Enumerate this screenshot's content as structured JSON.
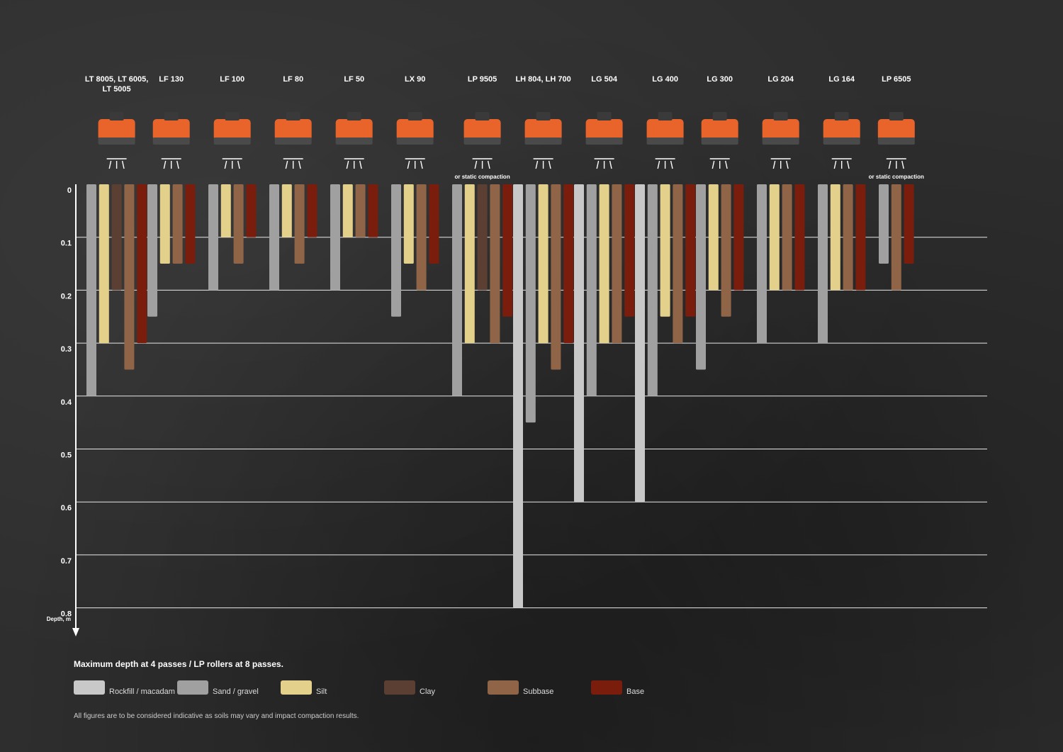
{
  "chart_data": {
    "type": "bar",
    "title": "",
    "ylabel": "Depth, m",
    "ylim": [
      0,
      0.8
    ],
    "yticks": [
      "0",
      "0.1",
      "0.2",
      "0.3",
      "0.4",
      "0.5",
      "0.6",
      "0.7",
      "0.8"
    ],
    "series_order": [
      "Rockfill / macadam",
      "Sand / gravel",
      "Silt",
      "Clay",
      "Subbase",
      "Base"
    ],
    "colors": {
      "Rockfill / macadam": "#c8c8c8",
      "Sand / gravel": "#a0a0a0",
      "Silt": "#e3d08a",
      "Clay": "#5b3f33",
      "Subbase": "#8f6447",
      "Base": "#7a1d0c"
    },
    "machines": [
      {
        "name": "LT 8005, LT 6005, LT 5005",
        "note": "",
        "bars": [
          {
            "s": "Sand / gravel",
            "v": 0.4
          },
          {
            "s": "Silt",
            "v": 0.3
          },
          {
            "s": "Clay",
            "v": 0.2
          },
          {
            "s": "Subbase",
            "v": 0.35
          },
          {
            "s": "Base",
            "v": 0.3
          }
        ]
      },
      {
        "name": "LF 130",
        "note": "",
        "bars": [
          {
            "s": "Sand / gravel",
            "v": 0.25
          },
          {
            "s": "Silt",
            "v": 0.15
          },
          {
            "s": "Subbase",
            "v": 0.15
          },
          {
            "s": "Base",
            "v": 0.15
          }
        ]
      },
      {
        "name": "LF 100",
        "note": "",
        "bars": [
          {
            "s": "Sand / gravel",
            "v": 0.2
          },
          {
            "s": "Silt",
            "v": 0.1
          },
          {
            "s": "Subbase",
            "v": 0.15
          },
          {
            "s": "Base",
            "v": 0.1
          }
        ]
      },
      {
        "name": "LF 80",
        "note": "",
        "bars": [
          {
            "s": "Sand / gravel",
            "v": 0.2
          },
          {
            "s": "Silt",
            "v": 0.1
          },
          {
            "s": "Subbase",
            "v": 0.15
          },
          {
            "s": "Base",
            "v": 0.1
          }
        ]
      },
      {
        "name": "LF 50",
        "note": "",
        "bars": [
          {
            "s": "Sand / gravel",
            "v": 0.2
          },
          {
            "s": "Silt",
            "v": 0.1
          },
          {
            "s": "Subbase",
            "v": 0.1
          },
          {
            "s": "Base",
            "v": 0.1
          }
        ]
      },
      {
        "name": "LX 90",
        "note": "",
        "bars": [
          {
            "s": "Sand / gravel",
            "v": 0.25
          },
          {
            "s": "Silt",
            "v": 0.15
          },
          {
            "s": "Subbase",
            "v": 0.2
          },
          {
            "s": "Base",
            "v": 0.15
          }
        ]
      },
      {
        "name": "LP 9505",
        "note": "or static compaction",
        "bars": [
          {
            "s": "Sand / gravel",
            "v": 0.4
          },
          {
            "s": "Silt",
            "v": 0.3
          },
          {
            "s": "Clay",
            "v": 0.2
          },
          {
            "s": "Subbase",
            "v": 0.3
          },
          {
            "s": "Base",
            "v": 0.25
          }
        ]
      },
      {
        "name": "LH 804, LH 700",
        "note": "",
        "bars": [
          {
            "s": "Rockfill / macadam",
            "v": 0.8
          },
          {
            "s": "Sand / gravel",
            "v": 0.45
          },
          {
            "s": "Silt",
            "v": 0.3
          },
          {
            "s": "Subbase",
            "v": 0.35
          },
          {
            "s": "Base",
            "v": 0.3
          }
        ]
      },
      {
        "name": "LG 504",
        "note": "",
        "bars": [
          {
            "s": "Rockfill / macadam",
            "v": 0.6
          },
          {
            "s": "Sand / gravel",
            "v": 0.4
          },
          {
            "s": "Silt",
            "v": 0.3
          },
          {
            "s": "Subbase",
            "v": 0.3
          },
          {
            "s": "Base",
            "v": 0.25
          }
        ]
      },
      {
        "name": "LG 400",
        "note": "",
        "bars": [
          {
            "s": "Rockfill / macadam",
            "v": 0.6
          },
          {
            "s": "Sand / gravel",
            "v": 0.4
          },
          {
            "s": "Silt",
            "v": 0.25
          },
          {
            "s": "Subbase",
            "v": 0.3
          },
          {
            "s": "Base",
            "v": 0.25
          }
        ]
      },
      {
        "name": "LG 300",
        "note": "",
        "bars": [
          {
            "s": "Sand / gravel",
            "v": 0.35
          },
          {
            "s": "Silt",
            "v": 0.2
          },
          {
            "s": "Subbase",
            "v": 0.25
          },
          {
            "s": "Base",
            "v": 0.2
          }
        ]
      },
      {
        "name": "LG 204",
        "note": "",
        "bars": [
          {
            "s": "Sand / gravel",
            "v": 0.3
          },
          {
            "s": "Silt",
            "v": 0.2
          },
          {
            "s": "Subbase",
            "v": 0.2
          },
          {
            "s": "Base",
            "v": 0.2
          }
        ]
      },
      {
        "name": "LG 164",
        "note": "",
        "bars": [
          {
            "s": "Sand / gravel",
            "v": 0.3
          },
          {
            "s": "Silt",
            "v": 0.2
          },
          {
            "s": "Subbase",
            "v": 0.2
          },
          {
            "s": "Base",
            "v": 0.2
          }
        ]
      },
      {
        "name": "LP 6505",
        "note": "or static compaction",
        "bars": [
          {
            "s": "Sand / gravel",
            "v": 0.15
          },
          {
            "s": "Subbase",
            "v": 0.2
          },
          {
            "s": "Base",
            "v": 0.15
          }
        ]
      }
    ]
  },
  "legend": {
    "title": "Maximum depth at 4 passes / LP rollers at 8 passes.",
    "items": [
      {
        "label": "Rockfill / macadam",
        "color": "#c8c8c8"
      },
      {
        "label": "Sand / gravel",
        "color": "#a0a0a0"
      },
      {
        "label": "Silt",
        "color": "#e3d08a"
      },
      {
        "label": "Clay",
        "color": "#5b3f33"
      },
      {
        "label": "Subbase",
        "color": "#8f6447"
      },
      {
        "label": "Base",
        "color": "#7a1d0c"
      }
    ]
  },
  "footnote": "All figures are to be considered indicative as soils may vary and impact compaction results."
}
